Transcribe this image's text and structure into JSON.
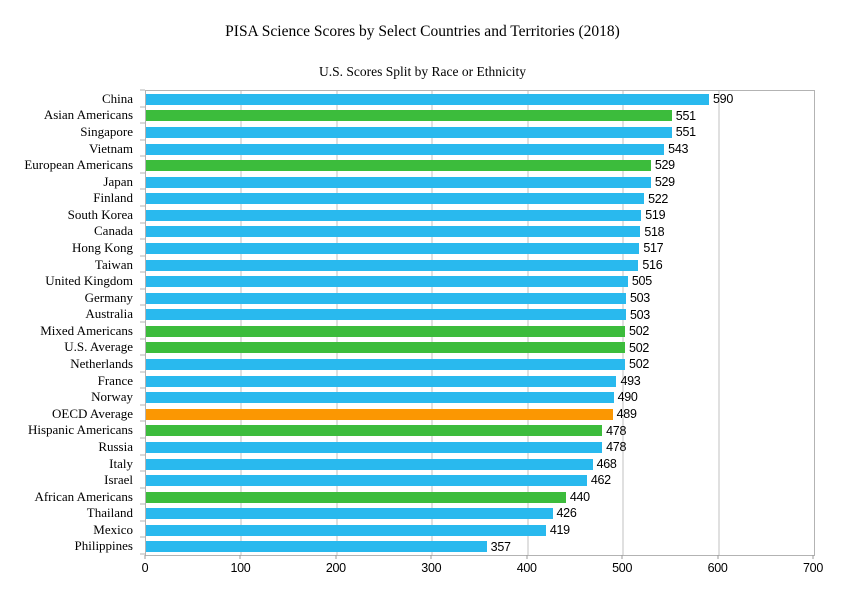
{
  "chart_data": {
    "type": "bar",
    "orientation": "horizontal",
    "title": "PISA Science Scores by Select Countries and Territories (2018)",
    "subtitle": "U.S. Scores Split by Race or Ethnicity",
    "xlim": [
      0,
      700
    ],
    "x_ticks": [
      0,
      100,
      200,
      300,
      400,
      500,
      600,
      700
    ],
    "grid": "vertical",
    "legend": "none",
    "value_labels": true,
    "colors": {
      "country": "#29b9ee",
      "us_group": "#3cbc3c",
      "oecd": "#fb9702"
    },
    "bars": [
      {
        "label": "China",
        "value": 590,
        "group": "country"
      },
      {
        "label": "Asian Americans",
        "value": 551,
        "group": "us_group"
      },
      {
        "label": "Singapore",
        "value": 551,
        "group": "country"
      },
      {
        "label": "Vietnam",
        "value": 543,
        "group": "country"
      },
      {
        "label": "European Americans",
        "value": 529,
        "group": "us_group"
      },
      {
        "label": "Japan",
        "value": 529,
        "group": "country"
      },
      {
        "label": "Finland",
        "value": 522,
        "group": "country"
      },
      {
        "label": "South Korea",
        "value": 519,
        "group": "country"
      },
      {
        "label": "Canada",
        "value": 518,
        "group": "country"
      },
      {
        "label": "Hong Kong",
        "value": 517,
        "group": "country"
      },
      {
        "label": "Taiwan",
        "value": 516,
        "group": "country"
      },
      {
        "label": "United Kingdom",
        "value": 505,
        "group": "country"
      },
      {
        "label": "Germany",
        "value": 503,
        "group": "country"
      },
      {
        "label": "Australia",
        "value": 503,
        "group": "country"
      },
      {
        "label": "Mixed Americans",
        "value": 502,
        "group": "us_group"
      },
      {
        "label": "U.S. Average",
        "value": 502,
        "group": "us_group"
      },
      {
        "label": "Netherlands",
        "value": 502,
        "group": "country"
      },
      {
        "label": "France",
        "value": 493,
        "group": "country"
      },
      {
        "label": "Norway",
        "value": 490,
        "group": "country"
      },
      {
        "label": "OECD Average",
        "value": 489,
        "group": "oecd"
      },
      {
        "label": "Hispanic Americans",
        "value": 478,
        "group": "us_group"
      },
      {
        "label": "Russia",
        "value": 478,
        "group": "country"
      },
      {
        "label": "Italy",
        "value": 468,
        "group": "country"
      },
      {
        "label": "Israel",
        "value": 462,
        "group": "country"
      },
      {
        "label": "African Americans",
        "value": 440,
        "group": "us_group"
      },
      {
        "label": "Thailand",
        "value": 426,
        "group": "country"
      },
      {
        "label": "Mexico",
        "value": 419,
        "group": "country"
      },
      {
        "label": "Philippines",
        "value": 357,
        "group": "country"
      }
    ]
  }
}
